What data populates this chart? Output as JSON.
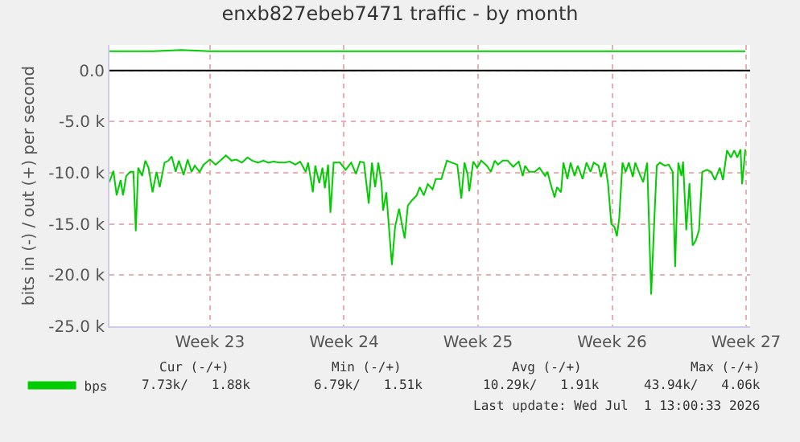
{
  "chart_data": {
    "type": "line",
    "title": "enxb827ebeb7471 traffic - by month",
    "ylabel": "bits in (-) / out (+) per second",
    "xlim": [
      "2026-05-29T06:00",
      "2026-07-01T17:00"
    ],
    "xticks": [
      {
        "value": "2026-06-03T12:00",
        "label": "Week 23"
      },
      {
        "value": "2026-06-10T12:00",
        "label": "Week 24"
      },
      {
        "value": "2026-06-17T12:00",
        "label": "Week 25"
      },
      {
        "value": "2026-06-24T12:00",
        "label": "Week 26"
      },
      {
        "value": "2026-07-01T12:00",
        "label": "Week 27"
      }
    ],
    "ylim": [
      -25000,
      2500
    ],
    "yticks": [
      {
        "value": -25000,
        "label": "-25.0 k"
      },
      {
        "value": -20000,
        "label": "-20.0 k"
      },
      {
        "value": -15000,
        "label": "-15.0 k"
      },
      {
        "value": -10000,
        "label": "-10.0 k"
      },
      {
        "value": -5000,
        "label": "-5.0 k"
      },
      {
        "value": 0,
        "label": "0.0"
      }
    ],
    "grid": true,
    "legend": "bottom left",
    "marker": "none",
    "line_style": "solid",
    "ref_lines": [
      {
        "axis": "y",
        "value": 0,
        "color": "#000000"
      }
    ],
    "series": [
      {
        "name": "bps",
        "color": "#00cc00",
        "x": [
          "2026-05-29T06:00",
          "2026-05-29T11:00",
          "2026-05-29T15:00",
          "2026-05-29T20:00",
          "2026-05-29T23:00",
          "2026-05-30T03:00",
          "2026-05-30T08:00",
          "2026-05-30T12:00",
          "2026-05-30T15:00",
          "2026-05-30T18:00",
          "2026-05-30T23:00",
          "2026-05-31T03:00",
          "2026-05-31T07:00",
          "2026-05-31T12:00",
          "2026-05-31T17:00",
          "2026-05-31T21:00",
          "2026-06-01T03:00",
          "2026-06-01T08:00",
          "2026-06-01T12:00",
          "2026-06-01T17:00",
          "2026-06-01T21:00",
          "2026-06-02T03:00",
          "2026-06-02T08:00",
          "2026-06-02T13:00",
          "2026-06-02T17:00",
          "2026-06-02T23:00",
          "2026-06-03T04:00",
          "2026-06-03T12:00",
          "2026-06-03T19:00",
          "2026-06-04T01:00",
          "2026-06-04T08:00",
          "2026-06-04T15:00",
          "2026-06-04T21:00",
          "2026-06-05T04:00",
          "2026-06-05T11:00",
          "2026-06-05T17:00",
          "2026-06-06T00:00",
          "2026-06-06T07:00",
          "2026-06-06T13:00",
          "2026-06-06T20:00",
          "2026-06-07T03:00",
          "2026-06-07T09:00",
          "2026-06-07T16:00",
          "2026-06-07T23:00",
          "2026-06-08T05:00",
          "2026-06-08T12:00",
          "2026-06-08T15:00",
          "2026-06-08T21:00",
          "2026-06-09T00:00",
          "2026-06-09T05:00",
          "2026-06-09T09:00",
          "2026-06-09T12:00",
          "2026-06-09T16:00",
          "2026-06-09T19:00",
          "2026-06-09T23:00",
          "2026-06-10T07:00",
          "2026-06-10T14:00",
          "2026-06-10T21:00",
          "2026-06-11T03:00",
          "2026-06-11T08:00",
          "2026-06-11T13:00",
          "2026-06-11T19:00",
          "2026-06-11T23:00",
          "2026-06-12T03:00",
          "2026-06-12T07:00",
          "2026-06-12T11:00",
          "2026-06-12T13:00",
          "2026-06-12T17:00",
          "2026-06-12T21:00",
          "2026-06-13T00:00",
          "2026-06-13T04:00",
          "2026-06-13T09:00",
          "2026-06-13T12:00",
          "2026-06-13T16:00",
          "2026-06-13T20:00",
          "2026-06-14T01:00",
          "2026-06-14T07:00",
          "2026-06-14T11:00",
          "2026-06-14T16:00",
          "2026-06-14T21:00",
          "2026-06-15T03:00",
          "2026-06-15T07:00",
          "2026-06-15T14:00",
          "2026-06-15T21:00",
          "2026-06-16T03:00",
          "2026-06-16T10:00",
          "2026-06-16T15:00",
          "2026-06-16T19:00",
          "2026-06-16T23:00",
          "2026-06-17T01:00",
          "2026-06-17T06:00",
          "2026-06-17T11:00",
          "2026-06-17T16:00",
          "2026-06-17T23:00",
          "2026-06-18T04:00",
          "2026-06-18T09:00",
          "2026-06-18T13:00",
          "2026-06-18T19:00",
          "2026-06-19T01:00",
          "2026-06-19T08:00",
          "2026-06-19T15:00",
          "2026-06-19T20:00",
          "2026-06-19T23:00",
          "2026-06-20T04:00",
          "2026-06-20T11:00",
          "2026-06-20T17:00",
          "2026-06-21T00:00",
          "2026-06-21T03:00",
          "2026-06-21T07:00",
          "2026-06-21T12:00",
          "2026-06-21T15:00",
          "2026-06-21T20:00",
          "2026-06-21T23:00",
          "2026-06-22T04:00",
          "2026-06-22T08:00",
          "2026-06-22T13:00",
          "2026-06-22T17:00",
          "2026-06-22T23:00",
          "2026-06-23T04:00",
          "2026-06-23T09:00",
          "2026-06-23T13:00",
          "2026-06-23T19:00",
          "2026-06-23T22:00",
          "2026-06-24T03:00",
          "2026-06-24T07:00",
          "2026-06-24T11:00",
          "2026-06-24T15:00",
          "2026-06-24T18:00",
          "2026-06-24T21:00",
          "2026-06-25T01:00",
          "2026-06-25T05:00",
          "2026-06-25T09:00",
          "2026-06-25T14:00",
          "2026-06-25T17:00",
          "2026-06-25T23:00",
          "2026-06-26T03:00",
          "2026-06-26T08:00",
          "2026-06-26T13:00",
          "2026-06-26T17:00",
          "2026-06-26T20:00",
          "2026-06-27T00:00",
          "2026-06-27T06:00",
          "2026-06-27T11:00",
          "2026-06-27T16:00",
          "2026-06-27T19:00",
          "2026-06-27T23:00",
          "2026-06-28T03:00",
          "2026-06-28T05:00",
          "2026-06-28T09:00",
          "2026-06-28T13:00",
          "2026-06-28T17:00",
          "2026-06-28T21:00",
          "2026-06-29T01:00",
          "2026-06-29T05:00",
          "2026-06-29T11:00",
          "2026-06-29T16:00",
          "2026-06-29T21:00",
          "2026-06-30T03:00",
          "2026-06-30T07:00",
          "2026-06-30T12:00",
          "2026-06-30T17:00",
          "2026-06-30T21:00",
          "2026-07-01T01:00",
          "2026-07-01T05:00",
          "2026-07-01T07:00",
          "2026-07-01T11:00"
        ],
        "values": [
          -10900,
          -9800,
          -12200,
          -10700,
          -12200,
          -10300,
          -9900,
          -9900,
          -15700,
          -9500,
          -10300,
          -8800,
          -9500,
          -11900,
          -9900,
          -11400,
          -9000,
          -8800,
          -8400,
          -9900,
          -8800,
          -10200,
          -8700,
          -9900,
          -9300,
          -9900,
          -9200,
          -8700,
          -9200,
          -8800,
          -8300,
          -8800,
          -8700,
          -9000,
          -8500,
          -8800,
          -9000,
          -8800,
          -9000,
          -8900,
          -9000,
          -9000,
          -8900,
          -9200,
          -8900,
          -9900,
          -9000,
          -11900,
          -9300,
          -11000,
          -9500,
          -11500,
          -9200,
          -13900,
          -9000,
          -9000,
          -9700,
          -9000,
          -10100,
          -8900,
          -9000,
          -13000,
          -9000,
          -11400,
          -9000,
          -11000,
          -13700,
          -11900,
          -16000,
          -19000,
          -15300,
          -13500,
          -14800,
          -16400,
          -13200,
          -12700,
          -12200,
          -11400,
          -12200,
          -11100,
          -11600,
          -10600,
          -10600,
          -8800,
          -9000,
          -9200,
          -12500,
          -9000,
          -10200,
          -11800,
          -8900,
          -9500,
          -8800,
          -9300,
          -9900,
          -8800,
          -9200,
          -8800,
          -8800,
          -9400,
          -8900,
          -10300,
          -9300,
          -9900,
          -9900,
          -9500,
          -10300,
          -9900,
          -11100,
          -12400,
          -11400,
          -11900,
          -9000,
          -10600,
          -9000,
          -10300,
          -9300,
          -10600,
          -9000,
          -9900,
          -9000,
          -9300,
          -10400,
          -9000,
          -11100,
          -15000,
          -15300,
          -16200,
          -14400,
          -9000,
          -9900,
          -9000,
          -10400,
          -9000,
          -10200,
          -10900,
          -9000,
          -21900,
          -14500,
          -9300,
          -9000,
          -9300,
          -9200,
          -9900,
          -19200,
          -9000,
          -10300,
          -8900,
          -15600,
          -11000,
          -17100,
          -16600,
          -15600,
          -9900,
          -9700,
          -9900,
          -10700,
          -9500,
          -10700,
          -7800,
          -8500,
          -7800,
          -8500,
          -7700,
          -11100,
          -7700
        ]
      },
      {
        "color": "#00cc00",
        "x": [
          "2026-05-29T06:00",
          "2026-05-31T12:00",
          "2026-06-02T00:00",
          "2026-06-03T12:00",
          "2026-06-05T12:00",
          "2026-06-07T12:00",
          "2026-06-10T12:00",
          "2026-06-13T12:00",
          "2026-06-17T12:00",
          "2026-06-20T12:00",
          "2026-06-24T12:00",
          "2026-06-27T12:00",
          "2026-07-01T11:00"
        ],
        "values": [
          1900,
          1900,
          2000,
          1900,
          1900,
          1900,
          1900,
          1900,
          1900,
          1900,
          1900,
          1900,
          1900
        ]
      }
    ],
    "annotations": [
      "Cur (-/+)",
      "Min (-/+)",
      "Avg (-/+)",
      "Max (-/+)",
      "7.73k/   1.88k",
      "6.79k/   1.51k",
      "10.29k/   1.91k",
      "43.94k/   4.06k",
      "Last update: Wed Jul  1 13:00:33 2026"
    ]
  }
}
